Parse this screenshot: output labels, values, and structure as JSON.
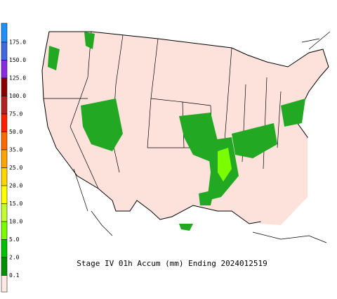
{
  "legend": {
    "labels": [
      "175.0",
      "150.0",
      "125.0",
      "100.0",
      "75.0",
      "50.0",
      "35.0",
      "25.0",
      "20.0",
      "15.0",
      "10.0",
      "5.0",
      "2.0",
      "0.1"
    ],
    "colors": [
      "#1e90ff",
      "#4169e1",
      "#8a2be2",
      "#8b0000",
      "#b22222",
      "#ff2000",
      "#ff6a00",
      "#ffa500",
      "#ffd700",
      "#ffff00",
      "#c0ff30",
      "#7cfc00",
      "#00c000",
      "#009000",
      "#ffe8e4"
    ]
  },
  "caption": "Stage IV 01h Accum (mm) Ending 2024012519"
}
